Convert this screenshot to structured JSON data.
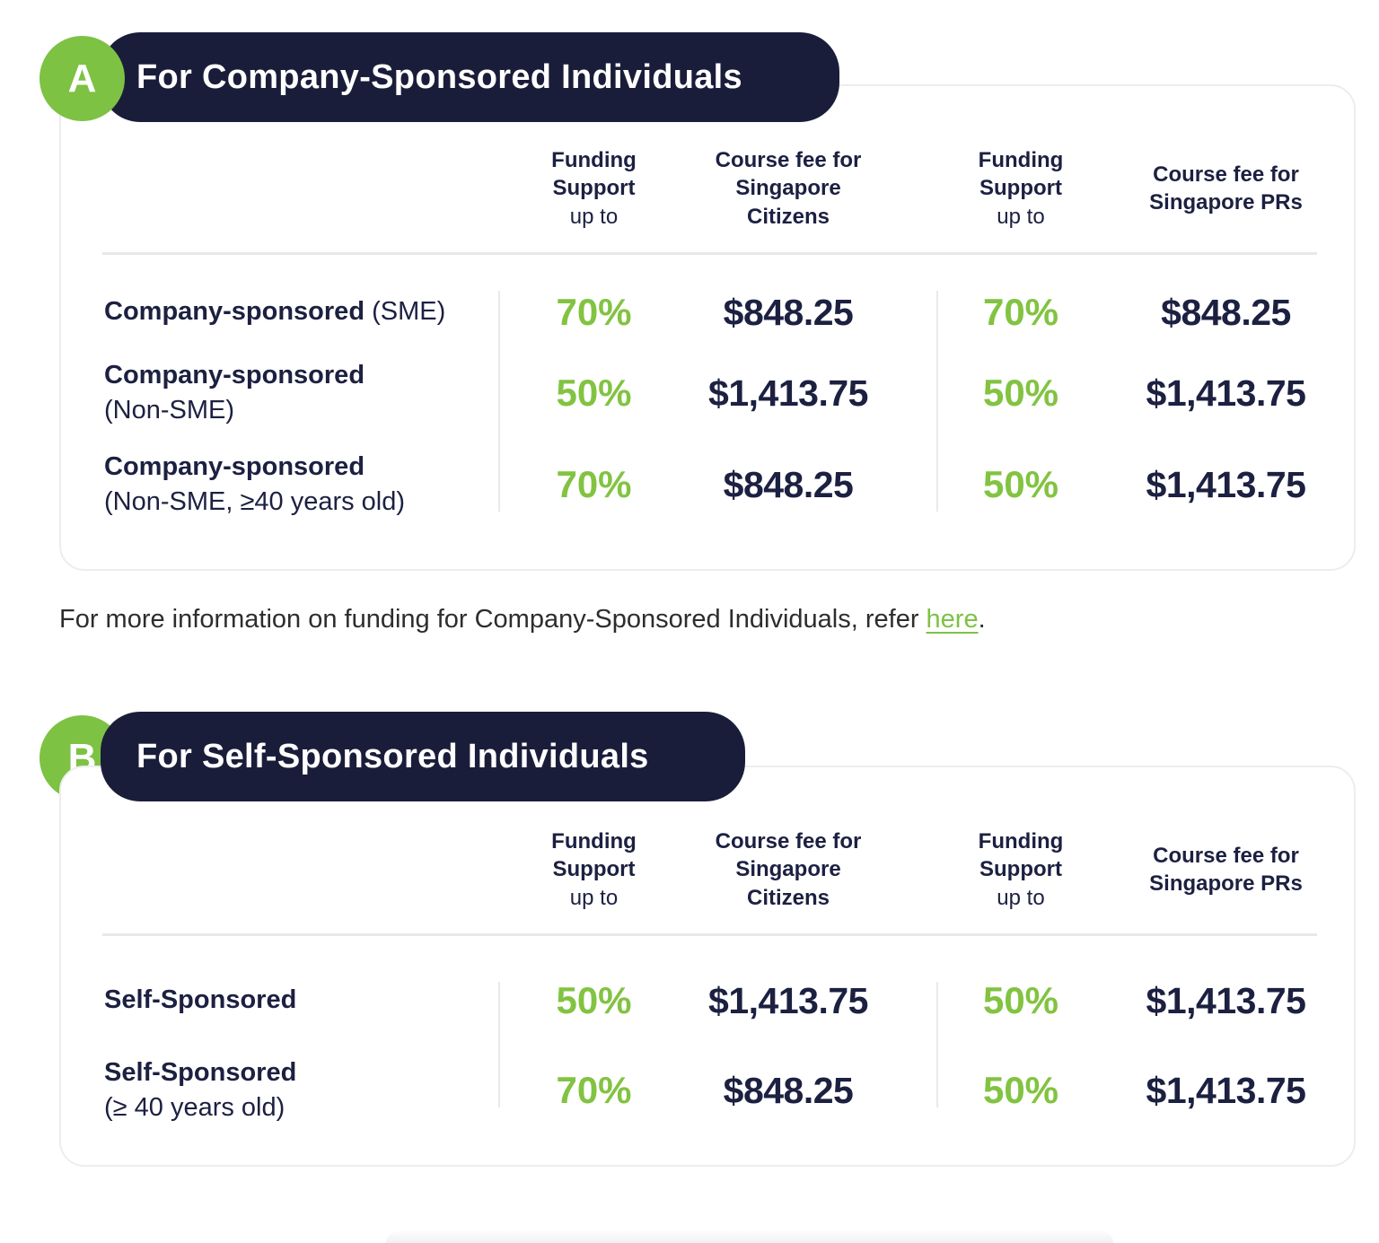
{
  "colors": {
    "accent_green": "#7dc243",
    "text_navy": "#1c2041",
    "pill_background": "#1a1d3a",
    "card_border": "#ededef",
    "divider": "#e8e8ea",
    "footer_text": "#2d2d2d"
  },
  "sections": [
    {
      "badge": "A",
      "title": "For Company-Sponsored Individuals",
      "columns": [
        {
          "title": "Funding Support",
          "sub": "up to"
        },
        {
          "title": "Course fee for Singapore Citizens",
          "sub": ""
        },
        {
          "title": "Funding Support",
          "sub": "up to"
        },
        {
          "title": "Course fee for Singapore PRs",
          "sub": ""
        }
      ],
      "rows": [
        {
          "label": "Company-sponsored",
          "label_inline": "(SME)",
          "label_block": "",
          "values": [
            "70%",
            "$848.25",
            "70%",
            "$848.25"
          ]
        },
        {
          "label": "Company-sponsored",
          "label_inline": "",
          "label_block": "(Non-SME)",
          "values": [
            "50%",
            "$1,413.75",
            "50%",
            "$1,413.75"
          ]
        },
        {
          "label": "Company-sponsored",
          "label_inline": "",
          "label_block": "(Non-SME, ≥40 years old)",
          "values": [
            "70%",
            "$848.25",
            "50%",
            "$1,413.75"
          ]
        }
      ]
    },
    {
      "badge": "B",
      "title": "For Self-Sponsored Individuals",
      "columns": [
        {
          "title": "Funding Support",
          "sub": "up to"
        },
        {
          "title": "Course fee for Singapore Citizens",
          "sub": ""
        },
        {
          "title": "Funding Support",
          "sub": "up to"
        },
        {
          "title": "Course fee for Singapore PRs",
          "sub": ""
        }
      ],
      "rows": [
        {
          "label": "Self-Sponsored",
          "label_inline": "",
          "label_block": "",
          "values": [
            "50%",
            "$1,413.75",
            "50%",
            "$1,413.75"
          ]
        },
        {
          "label": "Self-Sponsored",
          "label_inline": "",
          "label_block": "(≥ 40 years old)",
          "values": [
            "70%",
            "$848.25",
            "50%",
            "$1,413.75"
          ]
        }
      ]
    }
  ],
  "footer": {
    "text_before": "For more information on funding for Company-Sponsored Individuals, refer",
    "link_label": "here",
    "text_after": "."
  }
}
